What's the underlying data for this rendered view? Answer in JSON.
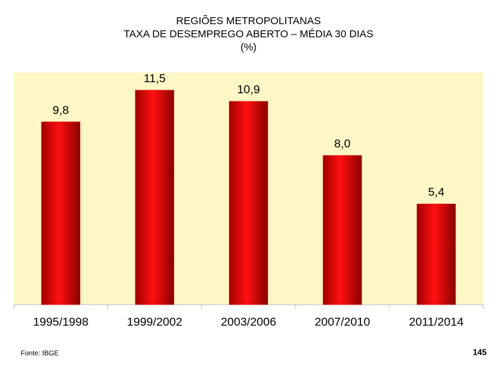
{
  "chart_data": {
    "type": "bar",
    "title": "REGIÕES METROPOLITANAS",
    "subtitle": "TAXA DE DESEMPREGO ABERTO – MÉDIA 30 DIAS",
    "unit": "(%)",
    "categories": [
      "1995/1998",
      "1999/2002",
      "2003/2006",
      "2007/2010",
      "2011/2014"
    ],
    "values": [
      9.8,
      11.5,
      10.9,
      8.0,
      5.4
    ],
    "value_labels": [
      "9,8",
      "11,5",
      "10,9",
      "8,0",
      "5,4"
    ],
    "color": "#e00000",
    "background": "#fdf7c6",
    "source": "Fonte: IBGE"
  },
  "page_number": "145"
}
